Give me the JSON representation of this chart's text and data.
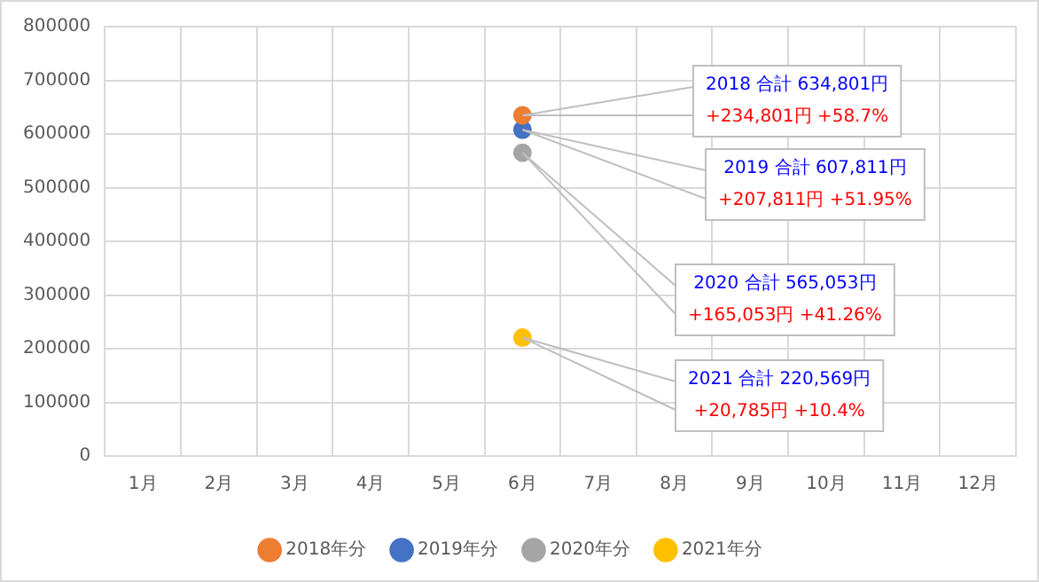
{
  "chart_data": {
    "type": "line",
    "categories": [
      "1月",
      "2月",
      "3月",
      "4月",
      "5月",
      "6月",
      "7月",
      "8月",
      "9月",
      "10月",
      "11月",
      "12月"
    ],
    "series": [
      {
        "name": "2018年分",
        "color": "#ed7d31",
        "values": [
          null,
          null,
          null,
          null,
          null,
          634801,
          null,
          null,
          null,
          null,
          null,
          null
        ]
      },
      {
        "name": "2019年分",
        "color": "#4472c4",
        "values": [
          null,
          null,
          null,
          null,
          null,
          607811,
          null,
          null,
          null,
          null,
          null,
          null
        ]
      },
      {
        "name": "2020年分",
        "color": "#a5a5a5",
        "values": [
          null,
          null,
          null,
          null,
          null,
          565053,
          null,
          null,
          null,
          null,
          null,
          null
        ]
      },
      {
        "name": "2021年分",
        "color": "#ffc000",
        "values": [
          null,
          null,
          null,
          null,
          null,
          220569,
          null,
          null,
          null,
          null,
          null,
          null
        ]
      }
    ],
    "ylim": [
      0,
      800000
    ],
    "yticks": [
      0,
      100000,
      200000,
      300000,
      400000,
      500000,
      600000,
      700000,
      800000
    ],
    "grid": true,
    "legend": "bottom",
    "marker": "circle",
    "annotations": [
      "2018 合計 634,801円\n+234,801円 +58.7%",
      "2019 合計 607,811円\n+207,811円 +51.95%",
      "2020 合計 565,053円\n+165,053円 +41.26%",
      "2021 合計 220,569円\n+20,785円 +10.4%"
    ]
  }
}
